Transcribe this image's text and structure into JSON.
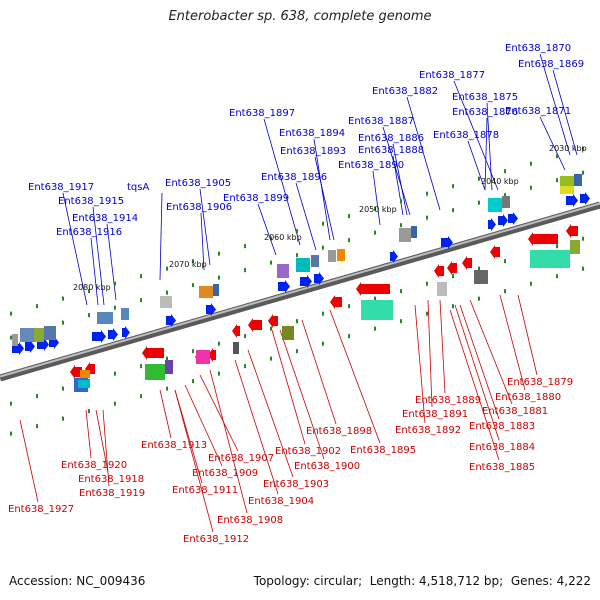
{
  "title": "Enterobacter sp. 638, complete genome",
  "footer": {
    "accession_label": "Accession:",
    "accession": "NC_009436",
    "topology_label": "Topology:",
    "topology": "circular",
    "length_label": "Length:",
    "length": "4,518,712 bp",
    "genes_label": "Genes:",
    "genes": "4,222"
  },
  "colors": {
    "forward_label": "#0000cc",
    "reverse_label": "#cc0000",
    "forward_gene": "#0022ee",
    "reverse_gene": "#ee0000",
    "backbone": "#888888",
    "tick_dots": "#228822"
  },
  "kbp_ticks": [
    "2030 kbp",
    "2040 kbp",
    "2050 kbp",
    "2060 kbp",
    "2070 kbp",
    "2080 kbp"
  ],
  "forward_labels": [
    "Ent638_1870",
    "Ent638_1869",
    "Ent638_1877",
    "Ent638_1875",
    "Ent638_1882",
    "Ent638_1876",
    "Ent638_1871",
    "Ent638_1887",
    "Ent638_1878",
    "Ent638_1886",
    "Ent638_1888",
    "Ent638_1890",
    "Ent638_1897",
    "Ent638_1894",
    "Ent638_1893",
    "Ent638_1896",
    "Ent638_1899",
    "Ent638_1905",
    "Ent638_1906",
    "tqsA",
    "Ent638_1917",
    "Ent638_1915",
    "Ent638_1914",
    "Ent638_1916"
  ],
  "reverse_labels": [
    "Ent638_1879",
    "Ent638_1880",
    "Ent638_1889",
    "Ent638_1881",
    "Ent638_1891",
    "Ent638_1883",
    "Ent638_1892",
    "Ent638_1884",
    "Ent638_1885",
    "Ent638_1898",
    "Ent638_1895",
    "Ent638_1902",
    "Ent638_1900",
    "Ent638_1913",
    "Ent638_1907",
    "Ent638_1909",
    "Ent638_1903",
    "Ent638_1911",
    "Ent638_1904",
    "Ent638_1908",
    "Ent638_1912",
    "Ent638_1920",
    "Ent638_1918",
    "Ent638_1919",
    "Ent638_1927"
  ]
}
